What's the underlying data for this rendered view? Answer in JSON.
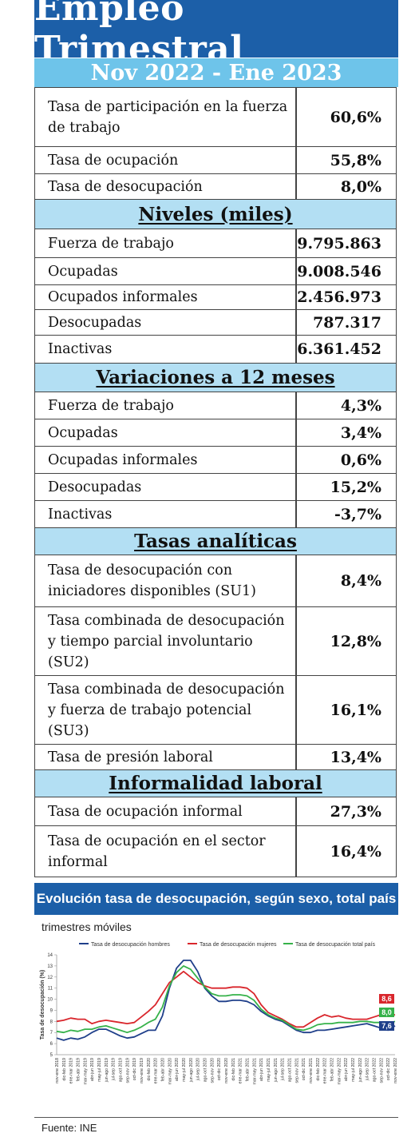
{
  "header": {
    "title": "Empleo Trimestral",
    "period": "Nov 2022 - Ene 2023"
  },
  "rows_main": [
    {
      "label": "Tasa de participación en la fuerza de trabajo",
      "value": "60,6%"
    },
    {
      "label": "Tasa de ocupación",
      "value": "55,8%"
    },
    {
      "label": "Tasa de desocupación",
      "value": "8,0%"
    }
  ],
  "sections": {
    "niveles": "Niveles (miles)",
    "variaciones": "Variaciones a 12 meses",
    "tasas": "Tasas analíticas",
    "informalidad": "Informalidad laboral"
  },
  "rows_niveles": [
    {
      "label": "Fuerza de trabajo",
      "value": "9.795.863"
    },
    {
      "label": "Ocupadas",
      "value": "9.008.546"
    },
    {
      "label": "Ocupados informales",
      "value": "2.456.973"
    },
    {
      "label": "Desocupadas",
      "value": "787.317"
    },
    {
      "label": "Inactivas",
      "value": "6.361.452"
    }
  ],
  "rows_variaciones": [
    {
      "label": "Fuerza de trabajo",
      "value": "4,3%"
    },
    {
      "label": "Ocupadas",
      "value": "3,4%"
    },
    {
      "label": "Ocupadas informales",
      "value": "0,6%"
    },
    {
      "label": "Desocupadas",
      "value": "15,2%"
    },
    {
      "label": "Inactivas",
      "value": "-3,7%"
    }
  ],
  "rows_tasas": [
    {
      "label": "Tasa de desocupación con iniciadores disponibles (SU1)",
      "value": "8,4%"
    },
    {
      "label": "Tasa combinada de desocupación y tiempo parcial involuntario (SU2)",
      "value": "12,8%"
    },
    {
      "label": "Tasa combinada de desocupación y fuerza de trabajo potencial (SU3)",
      "value": "16,1%"
    },
    {
      "label": "Tasa de presión laboral",
      "value": "13,4%"
    }
  ],
  "rows_informalidad": [
    {
      "label": "Tasa de ocupación informal",
      "value": "27,3%"
    },
    {
      "label": "Tasa de ocupación en el sector informal",
      "value": "16,4%"
    }
  ],
  "chart_section": {
    "title": "Evolución tasa de desocupación, según sexo, total país",
    "subtitle": "trimestres móviles"
  },
  "chart_data": {
    "type": "line",
    "ylabel": "Tasa de desocupación (%)",
    "ylim": [
      5,
      14
    ],
    "yticks": [
      5,
      6,
      7,
      8,
      9,
      10,
      11,
      12,
      13,
      14
    ],
    "legend_position": "top",
    "grid": false,
    "x": [
      "nov-ene 2018",
      "dic-feb 2019",
      "ene-mar 2019",
      "feb-abr 2019",
      "mar-may 2019",
      "abr-jun 2019",
      "may-jul 2019",
      "jun-ago 2019",
      "jul-sep 2019",
      "ago-oct 2019",
      "sep-nov 2019",
      "oct-dic 2019",
      "nov-ene 2019",
      "dic-feb 2020",
      "ene-mar 2020",
      "feb-abr 2020",
      "mar-may 2020",
      "abr-jun 2020",
      "may-jul 2020",
      "jun-ago 2020",
      "jul-sep 2020",
      "ago-oct 2020",
      "sep-nov 2020",
      "oct-dic 2020",
      "nov-ene 2020",
      "dic-feb 2021",
      "ene-mar 2021",
      "feb-abr 2021",
      "mar-may 2021",
      "abr-jun 2021",
      "may-jul 2021",
      "jun-ago 2021",
      "jul-sep 2021",
      "ago-oct 2021",
      "sep-nov 2021",
      "oct-dic 2021",
      "nov-ene 2021",
      "dic-feb 2022",
      "ene-mar 2022",
      "feb-abr 2022",
      "mar-may 2022",
      "abr-jun 2022",
      "may-jul 2022",
      "jun-ago 2022",
      "jul-sep 2022",
      "ago-oct 2022",
      "sep-nov 2022",
      "oct-dic 2022",
      "nov-ene 2022"
    ],
    "series": [
      {
        "name": "Tasa de desocupación hombres",
        "color": "#1f3f8a",
        "values": [
          6.5,
          6.3,
          6.5,
          6.4,
          6.6,
          7.0,
          7.3,
          7.3,
          7.0,
          6.7,
          6.5,
          6.6,
          6.9,
          7.2,
          7.2,
          8.5,
          11.0,
          12.8,
          13.5,
          13.5,
          12.5,
          11.0,
          10.3,
          9.8,
          9.8,
          9.9,
          9.9,
          9.8,
          9.5,
          8.9,
          8.5,
          8.2,
          8.0,
          7.6,
          7.2,
          7.0,
          7.0,
          7.2,
          7.2,
          7.3,
          7.4,
          7.5,
          7.6,
          7.7,
          7.8,
          7.6,
          7.4,
          7.2,
          7.6
        ]
      },
      {
        "name": "Tasa de desocupación mujeres",
        "color": "#d9262c",
        "values": [
          8.0,
          8.1,
          8.3,
          8.2,
          8.2,
          7.8,
          8.0,
          8.1,
          8.0,
          7.9,
          7.8,
          7.9,
          8.4,
          8.9,
          9.5,
          10.5,
          11.5,
          12.0,
          12.5,
          12.0,
          11.5,
          11.2,
          11.0,
          11.0,
          11.0,
          11.1,
          11.1,
          11.0,
          10.5,
          9.5,
          8.8,
          8.5,
          8.2,
          7.8,
          7.5,
          7.5,
          7.9,
          8.3,
          8.6,
          8.4,
          8.5,
          8.3,
          8.2,
          8.2,
          8.2,
          8.4,
          8.6,
          8.5,
          8.6
        ]
      },
      {
        "name": "Tasa de desocupación total país",
        "color": "#36b24a",
        "values": [
          7.1,
          7.0,
          7.2,
          7.1,
          7.3,
          7.3,
          7.5,
          7.6,
          7.4,
          7.2,
          7.0,
          7.2,
          7.5,
          7.9,
          8.2,
          9.3,
          11.2,
          12.4,
          13.0,
          12.7,
          11.9,
          11.1,
          10.5,
          10.3,
          10.3,
          10.4,
          10.4,
          10.3,
          9.9,
          9.1,
          8.6,
          8.3,
          8.1,
          7.7,
          7.3,
          7.2,
          7.4,
          7.7,
          7.8,
          7.8,
          7.9,
          7.9,
          7.9,
          8.0,
          8.0,
          7.9,
          7.9,
          7.8,
          8.0
        ]
      }
    ],
    "end_labels": [
      "8,6",
      "8,0",
      "7,6"
    ]
  },
  "source": "Fuente: INE"
}
